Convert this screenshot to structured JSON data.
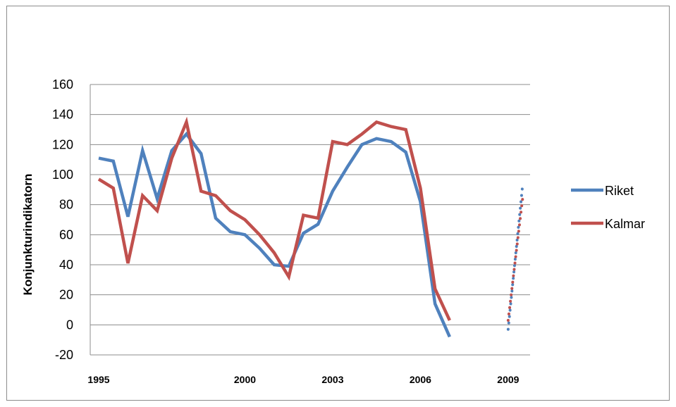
{
  "chart_data": {
    "type": "line",
    "title": "",
    "xlabel": "",
    "ylabel": "Konjunkturindikatorn",
    "ylim": [
      -20,
      160
    ],
    "yticks": [
      "160",
      "140",
      "120",
      "100",
      "80",
      "60",
      "40",
      "20",
      "0",
      "-20"
    ],
    "xticks": [
      "1995",
      "2000",
      "2003",
      "2006",
      "2009"
    ],
    "grid": "horizontal",
    "legend_position": "right",
    "x": [
      1995.0,
      1995.5,
      1996.0,
      1996.5,
      1997.0,
      1997.5,
      1998.0,
      1998.5,
      1999.0,
      1999.5,
      2000.0,
      2000.5,
      2001.0,
      2001.5,
      2002.0,
      2002.5,
      2003.0,
      2003.5,
      2004.0,
      2004.5,
      2005.0,
      2005.5,
      2006.0,
      2006.5,
      2007.0,
      2007.5,
      2008.0,
      2008.5,
      2009.0
    ],
    "series": [
      {
        "name": "Riket",
        "color": "#4f81bd",
        "values": [
          111,
          109,
          72,
          116,
          84,
          116,
          127,
          114,
          71,
          62,
          60,
          51,
          40,
          39,
          61,
          67,
          89,
          105,
          120,
          124,
          122,
          115,
          82,
          14,
          -8,
          null,
          null,
          null,
          null
        ],
        "forecast": {
          "from": [
            2009.0,
            -3
          ],
          "to": [
            2009.5,
            94
          ]
        }
      },
      {
        "name": "Kalmar",
        "color": "#c0504d",
        "values": [
          97,
          91,
          41,
          86,
          76,
          111,
          135,
          89,
          86,
          76,
          70,
          60,
          48,
          32,
          73,
          71,
          122,
          120,
          127,
          135,
          132,
          130,
          91,
          24,
          3,
          null,
          null,
          null,
          null
        ],
        "forecast": {
          "from": [
            2009.0,
            3
          ],
          "to": [
            2009.5,
            85
          ]
        }
      }
    ]
  }
}
